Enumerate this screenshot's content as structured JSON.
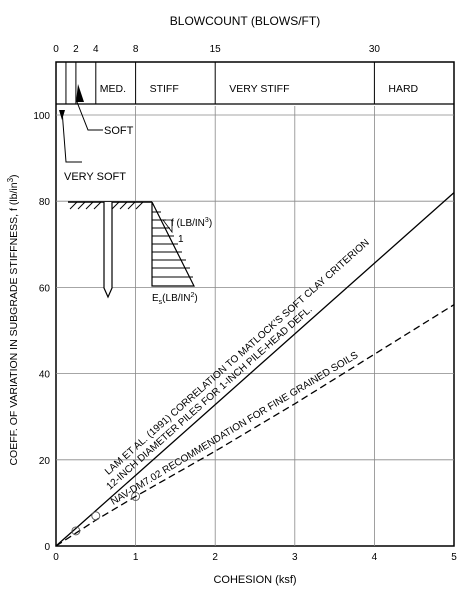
{
  "chart_data": {
    "type": "line",
    "top_axis_title": "BLOWCOUNT (BLOWS/FT)",
    "xlabel": "COHESION (ksf)",
    "ylabel": "COEFF. OF VARIATION IN SUBGRADE STIFFNESS, f (lb/in",
    "ylabel_sup": "3",
    "ylabel_end": ")",
    "xlim": [
      0,
      5
    ],
    "ylim": [
      0,
      100
    ],
    "x_ticks": [
      "0",
      "1",
      "2",
      "3",
      "4",
      "5"
    ],
    "y_ticks": [
      "0",
      "20",
      "40",
      "60",
      "80",
      "100"
    ],
    "blowcount_ticks": [
      {
        "label": "0",
        "cohesion": 0
      },
      {
        "label": "2",
        "cohesion": 0.25
      },
      {
        "label": "4",
        "cohesion": 0.5
      },
      {
        "label": "8",
        "cohesion": 1.0
      },
      {
        "label": "15",
        "cohesion": 2.0
      },
      {
        "label": "30",
        "cohesion": 4.0
      }
    ],
    "consistency_bands": [
      {
        "label": "VERY SOFT",
        "from": 0,
        "to": 0.125
      },
      {
        "label": "SOFT",
        "from": 0.125,
        "to": 0.25
      },
      {
        "label": "MED.",
        "from": 0.5,
        "to": 1.0
      },
      {
        "label": "STIFF",
        "from": 1.0,
        "to": 2.0
      },
      {
        "label": "VERY STIFF",
        "from": 2.0,
        "to": 4.0
      },
      {
        "label": "HARD",
        "from": 4.0,
        "to": 5.0
      }
    ],
    "series": [
      {
        "label": "12-INCH DIAMETER PILES FOR 1-INCH PILE-HEAD DEFL.",
        "label2": "LAM ET AL. (1991) CORRELATION TO MATLOCK'S SOFT CLAY CRITERION",
        "style": "solid",
        "x": [
          0,
          5
        ],
        "y": [
          0,
          82
        ]
      },
      {
        "label": "NAV-DM7.02 RECOMMENDATION FOR FINE GRAINED SOILS",
        "style": "dashed",
        "x": [
          0,
          0.25,
          0.5,
          1.0,
          2.0,
          3.0,
          4.0,
          5.0
        ],
        "y": [
          0,
          3,
          6,
          11.5,
          22,
          33,
          44.5,
          56
        ]
      }
    ],
    "marker_points": [
      {
        "x": 0.25,
        "y": 3.5
      },
      {
        "x": 0.5,
        "y": 7
      },
      {
        "x": 1.0,
        "y": 11.5
      }
    ],
    "inset": {
      "f_label": "f (LB/IN",
      "f_sup": "3",
      "f_end": ")",
      "slope": "1",
      "es_label_main": "E",
      "es_label_sub": "s",
      "es_label_rest": "(LB/IN",
      "es_sup": "2",
      "es_end": ")"
    }
  }
}
